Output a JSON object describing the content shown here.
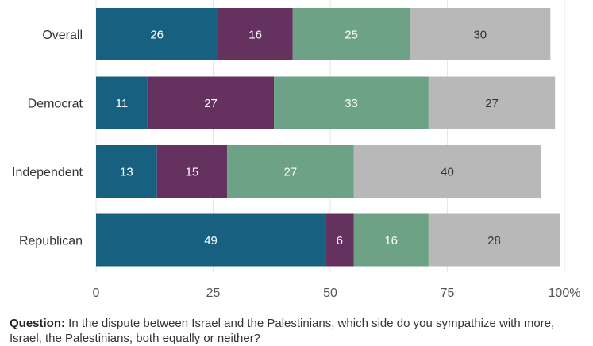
{
  "chart_data": {
    "type": "bar",
    "orientation": "horizontal",
    "stacked": true,
    "categories": [
      "Overall",
      "Democrat",
      "Independent",
      "Republican"
    ],
    "series": [
      {
        "values": [
          26,
          11,
          13,
          49
        ],
        "color": "#17607f",
        "label_color": "#ffffff"
      },
      {
        "values": [
          16,
          27,
          15,
          6
        ],
        "color": "#65315f",
        "label_color": "#ffffff"
      },
      {
        "values": [
          25,
          33,
          27,
          16
        ],
        "color": "#6da287",
        "label_color": "#ffffff"
      },
      {
        "values": [
          30,
          27,
          40,
          28
        ],
        "color": "#b8b8b8",
        "label_color": "#333333"
      }
    ],
    "xlim": [
      0,
      100
    ],
    "ticks": [
      {
        "value": 0,
        "label": "0"
      },
      {
        "value": 25,
        "label": "25"
      },
      {
        "value": 50,
        "label": "50"
      },
      {
        "value": 75,
        "label": "75"
      },
      {
        "value": 100,
        "label": "100%"
      }
    ],
    "grid": true,
    "gridline_color": "#e6e6e6"
  },
  "footnote": {
    "question_label": "Question:",
    "question_text": "In the dispute between Israel and the Palestinians, which side do you sympathize with more, Israel, the Palestinians, both equally or neither?"
  }
}
